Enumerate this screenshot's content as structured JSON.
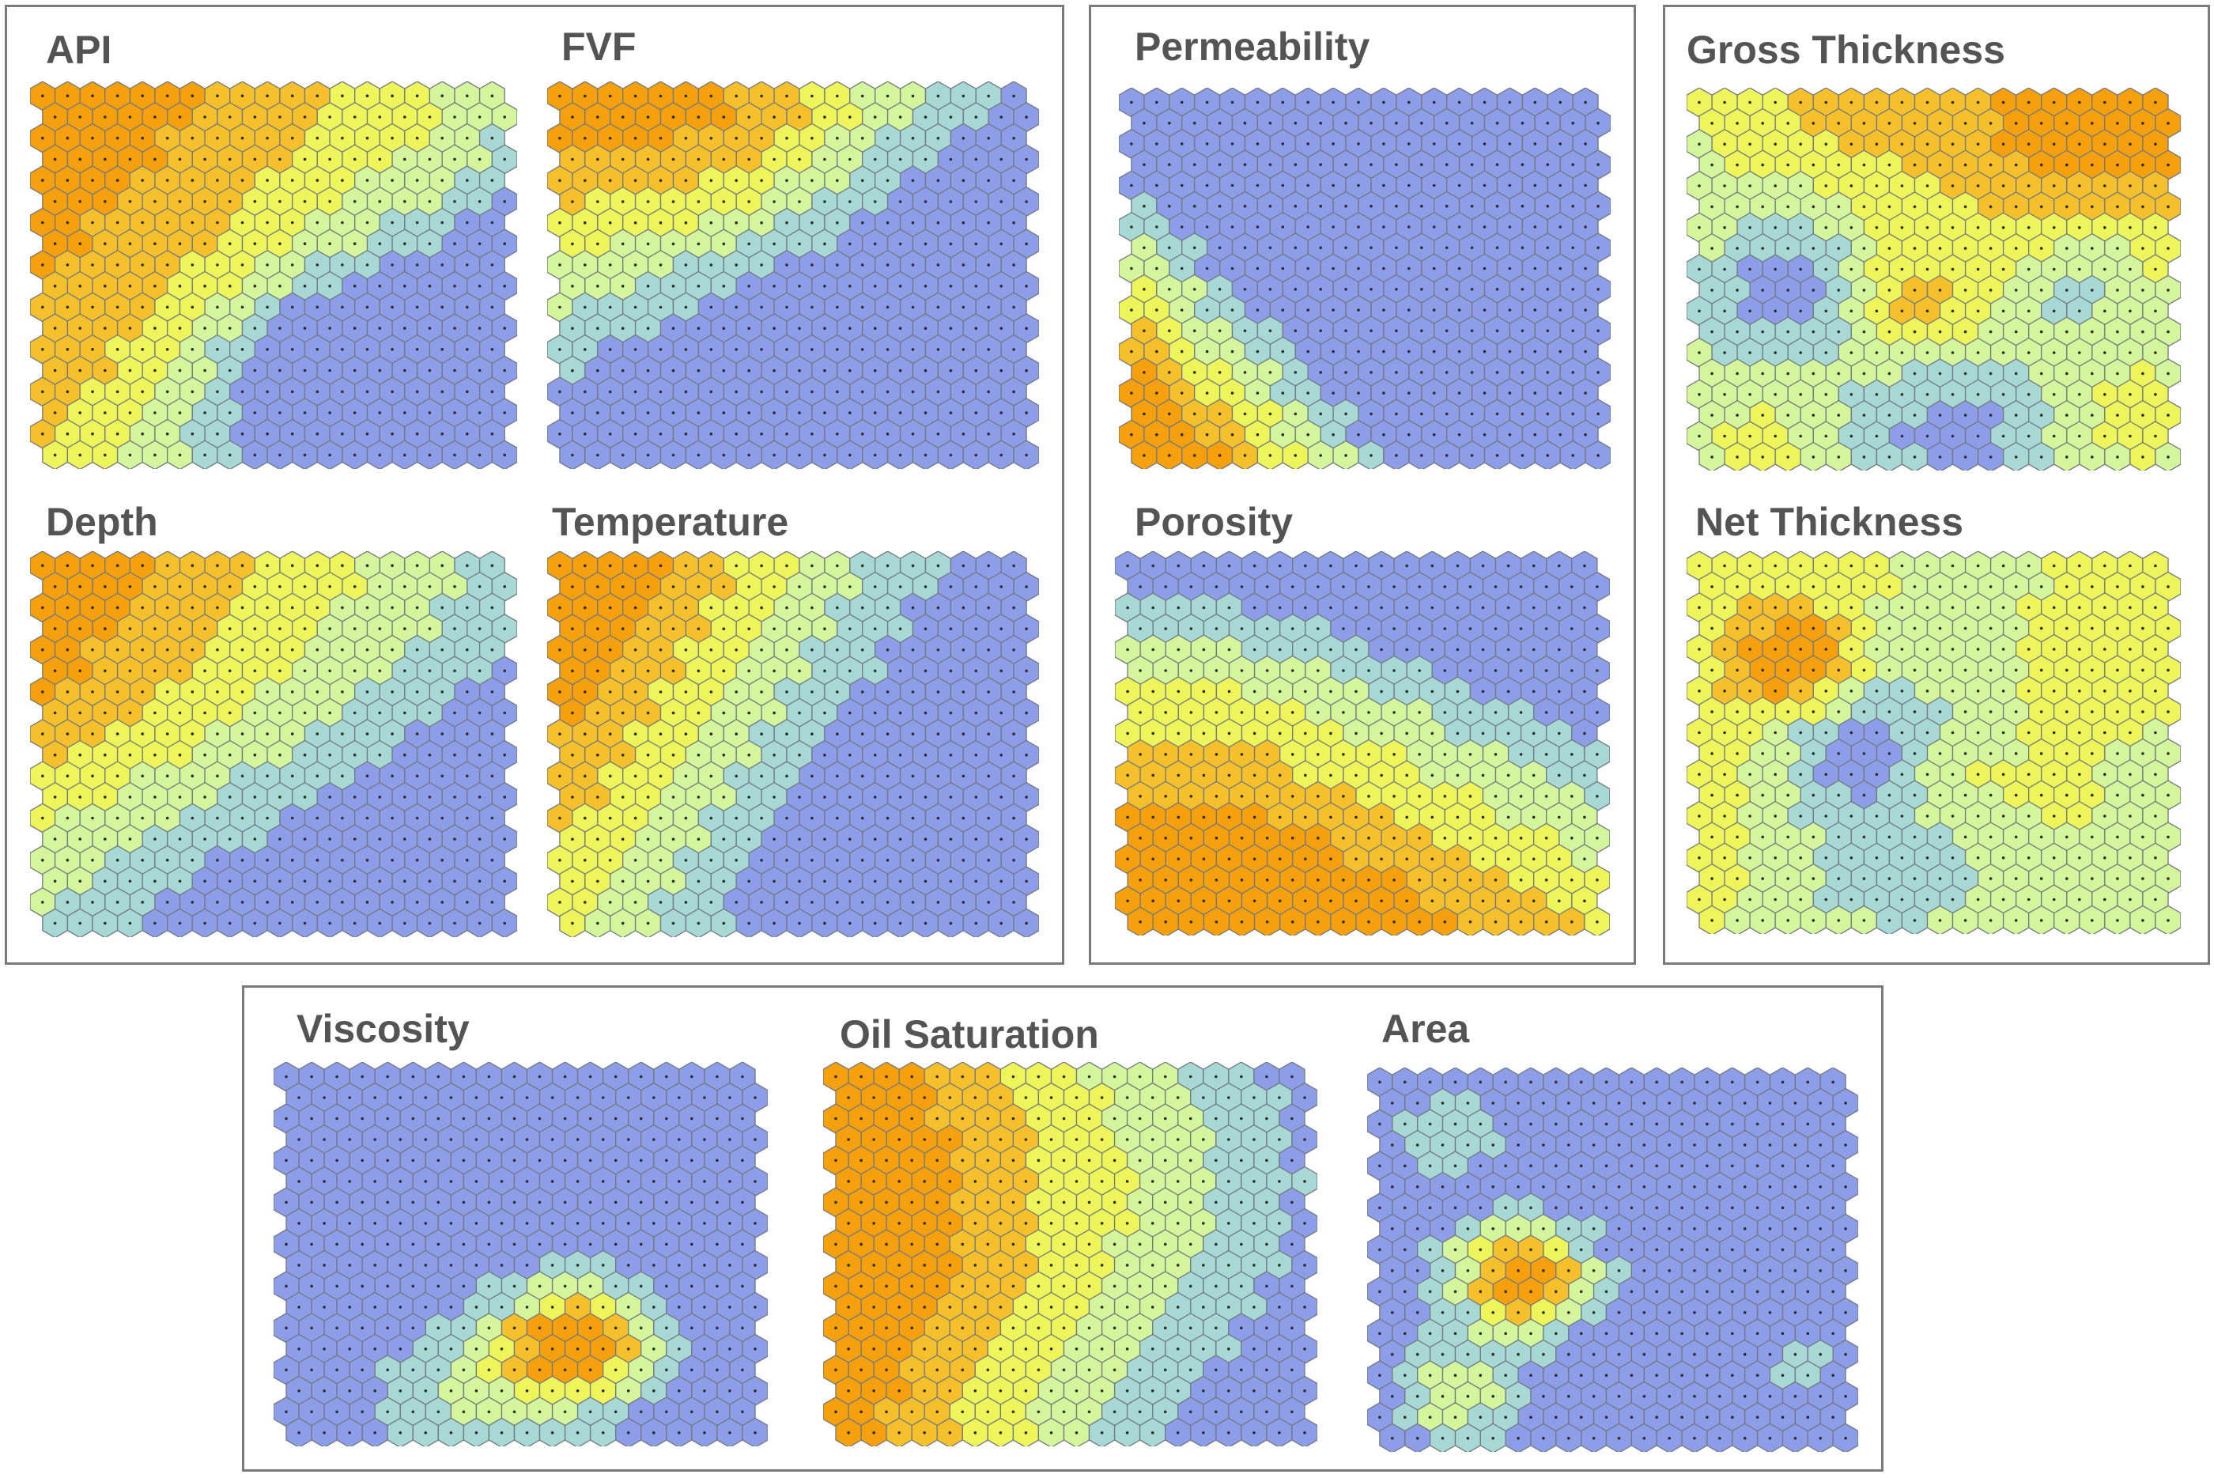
{
  "figure": {
    "description_type": "self-organizing map component planes",
    "grid": {
      "columns": 19,
      "rows": 18
    },
    "color_scale": [
      "#8e9de8",
      "#a8d8d4",
      "#d4f59b",
      "#edf55a",
      "#f5c02c",
      "#f5a00c"
    ],
    "color_scale_meaning": "low to high parameter value"
  },
  "maps": [
    {
      "id": "api",
      "title": "API"
    },
    {
      "id": "fvf",
      "title": "FVF"
    },
    {
      "id": "depth",
      "title": "Depth"
    },
    {
      "id": "temperature",
      "title": "Temperature"
    },
    {
      "id": "permeability",
      "title": "Permeability"
    },
    {
      "id": "porosity",
      "title": "Porosity"
    },
    {
      "id": "gross",
      "title": "Gross Thickness"
    },
    {
      "id": "net",
      "title": "Net Thickness"
    },
    {
      "id": "viscosity",
      "title": "Viscosity"
    },
    {
      "id": "oilsat",
      "title": "Oil Saturation"
    },
    {
      "id": "area",
      "title": "Area"
    }
  ]
}
